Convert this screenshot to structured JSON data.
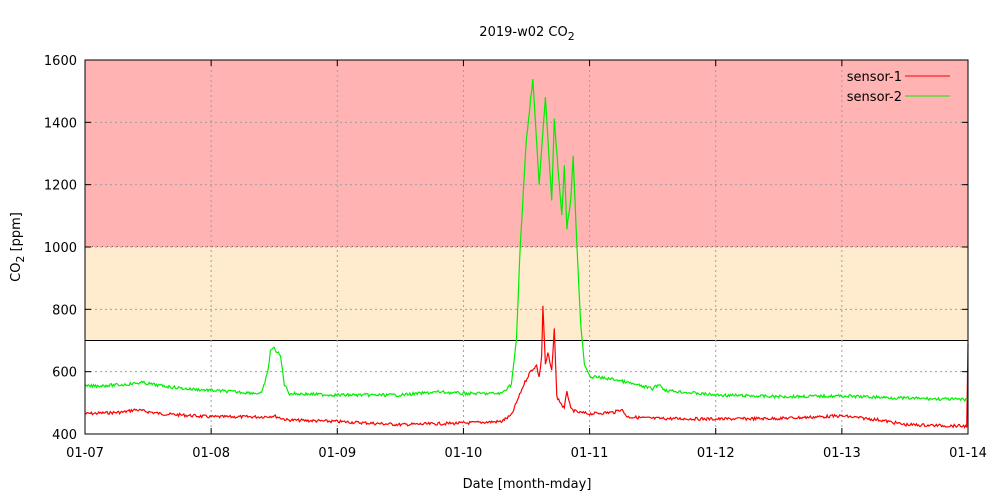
{
  "chart_data": {
    "type": "line",
    "title": "2019-w02 CO",
    "title_sub": "2",
    "xlabel": "Date [month-mday]",
    "ylabel": "CO",
    "ylabel_sub": "2",
    "ylabel_unit": " [ppm]",
    "xlim": [
      0,
      7
    ],
    "ylim": [
      400,
      1600
    ],
    "x_ticks": [
      "01-07",
      "01-08",
      "01-09",
      "01-10",
      "01-11",
      "01-12",
      "01-13",
      "01-14"
    ],
    "y_ticks": [
      400,
      600,
      800,
      1000,
      1200,
      1400,
      1600
    ],
    "grid": true,
    "legend_position": "top-right",
    "bands": [
      {
        "from": 1000,
        "to": 1600,
        "color": "#ffb3b3",
        "border": "dashed"
      },
      {
        "from": 700,
        "to": 1000,
        "color": "#ffecce",
        "border": "solid"
      }
    ],
    "series": [
      {
        "name": "sensor-1",
        "color": "#ff0000",
        "x": [
          0,
          0.3,
          0.4,
          0.6,
          1.0,
          1.4,
          1.5,
          1.6,
          2.0,
          2.5,
          3.0,
          3.3,
          3.38,
          3.42,
          3.48,
          3.53,
          3.58,
          3.6,
          3.62,
          3.63,
          3.65,
          3.67,
          3.7,
          3.72,
          3.74,
          3.77,
          3.8,
          3.82,
          3.85,
          3.9,
          4.0,
          4.2,
          4.25,
          4.3,
          4.5,
          5.0,
          5.5,
          6.0,
          6.3,
          6.5,
          6.99,
          7.0
        ],
        "y": [
          465,
          470,
          478,
          465,
          455,
          455,
          458,
          445,
          440,
          430,
          435,
          440,
          460,
          500,
          560,
          600,
          620,
          580,
          650,
          810,
          620,
          660,
          600,
          740,
          520,
          500,
          480,
          540,
          480,
          470,
          465,
          470,
          480,
          455,
          450,
          448,
          450,
          458,
          445,
          430,
          425,
          690
        ]
      },
      {
        "name": "sensor-2",
        "color": "#00ee00",
        "x": [
          0,
          0.3,
          0.45,
          0.6,
          0.8,
          1.0,
          1.2,
          1.4,
          1.45,
          1.47,
          1.5,
          1.55,
          1.58,
          1.62,
          2.0,
          2.5,
          2.8,
          3.0,
          3.3,
          3.38,
          3.42,
          3.45,
          3.5,
          3.55,
          3.6,
          3.65,
          3.7,
          3.72,
          3.75,
          3.78,
          3.8,
          3.82,
          3.85,
          3.87,
          3.9,
          3.93,
          3.96,
          4.0,
          4.2,
          4.5,
          4.55,
          4.6,
          5.0,
          5.5,
          6.0,
          6.5,
          7.0
        ],
        "y": [
          553,
          558,
          565,
          555,
          545,
          540,
          535,
          530,
          600,
          670,
          675,
          650,
          560,
          530,
          525,
          525,
          535,
          530,
          530,
          560,
          700,
          1000,
          1350,
          1540,
          1200,
          1480,
          1150,
          1410,
          1250,
          1100,
          1260,
          1060,
          1150,
          1290,
          1000,
          750,
          620,
          585,
          575,
          545,
          560,
          540,
          525,
          520,
          522,
          515,
          510
        ]
      }
    ]
  }
}
